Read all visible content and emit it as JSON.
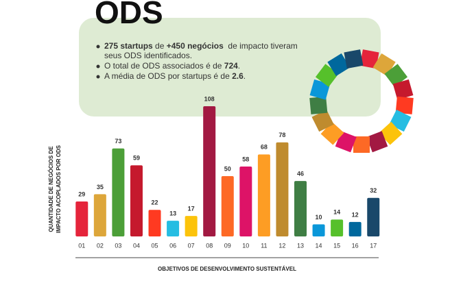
{
  "title": "ODS",
  "notes": [
    {
      "lines": [
        [
          {
            "text": "275 startups",
            "bold": true
          },
          {
            "text": " de ",
            "bold": false
          },
          {
            "text": "+450 negócios",
            "bold": true
          },
          {
            "text": "  de impacto tiveram",
            "bold": false
          }
        ],
        [
          {
            "text": "seus ODS identificados.",
            "bold": false
          }
        ]
      ]
    },
    {
      "lines": [
        [
          {
            "text": "O total de ODS associados é de ",
            "bold": false
          },
          {
            "text": "724",
            "bold": true
          },
          {
            "text": ".",
            "bold": false
          }
        ]
      ]
    },
    {
      "lines": [
        [
          {
            "text": "A média de ODS por startups é de ",
            "bold": false
          },
          {
            "text": "2.6",
            "bold": true
          },
          {
            "text": ".",
            "bold": false
          }
        ]
      ]
    }
  ],
  "chart_data": {
    "type": "bar",
    "y_label": [
      "QUANTIDADE DE NEGÓCIOS DE",
      "IMPACTO ACOPLADOS POR ODS"
    ],
    "x_label": "OBJETIVOS DE DESENVOLVIMENTO SUSTENTÁVEL",
    "categories": [
      "01",
      "02",
      "03",
      "04",
      "05",
      "06",
      "07",
      "08",
      "09",
      "10",
      "11",
      "12",
      "13",
      "14",
      "15",
      "16",
      "17"
    ],
    "values": [
      29,
      35,
      73,
      59,
      22,
      13,
      17,
      108,
      50,
      58,
      68,
      78,
      46,
      10,
      14,
      12,
      32
    ],
    "colors": [
      "#e5243b",
      "#dda63a",
      "#4c9f38",
      "#c5192d",
      "#ff3a21",
      "#26bde2",
      "#fcc30b",
      "#a21942",
      "#fd6925",
      "#dd1367",
      "#fd9d24",
      "#bf8b2e",
      "#3f7e44",
      "#0a97d9",
      "#56c02b",
      "#00689d",
      "#19486a"
    ]
  }
}
